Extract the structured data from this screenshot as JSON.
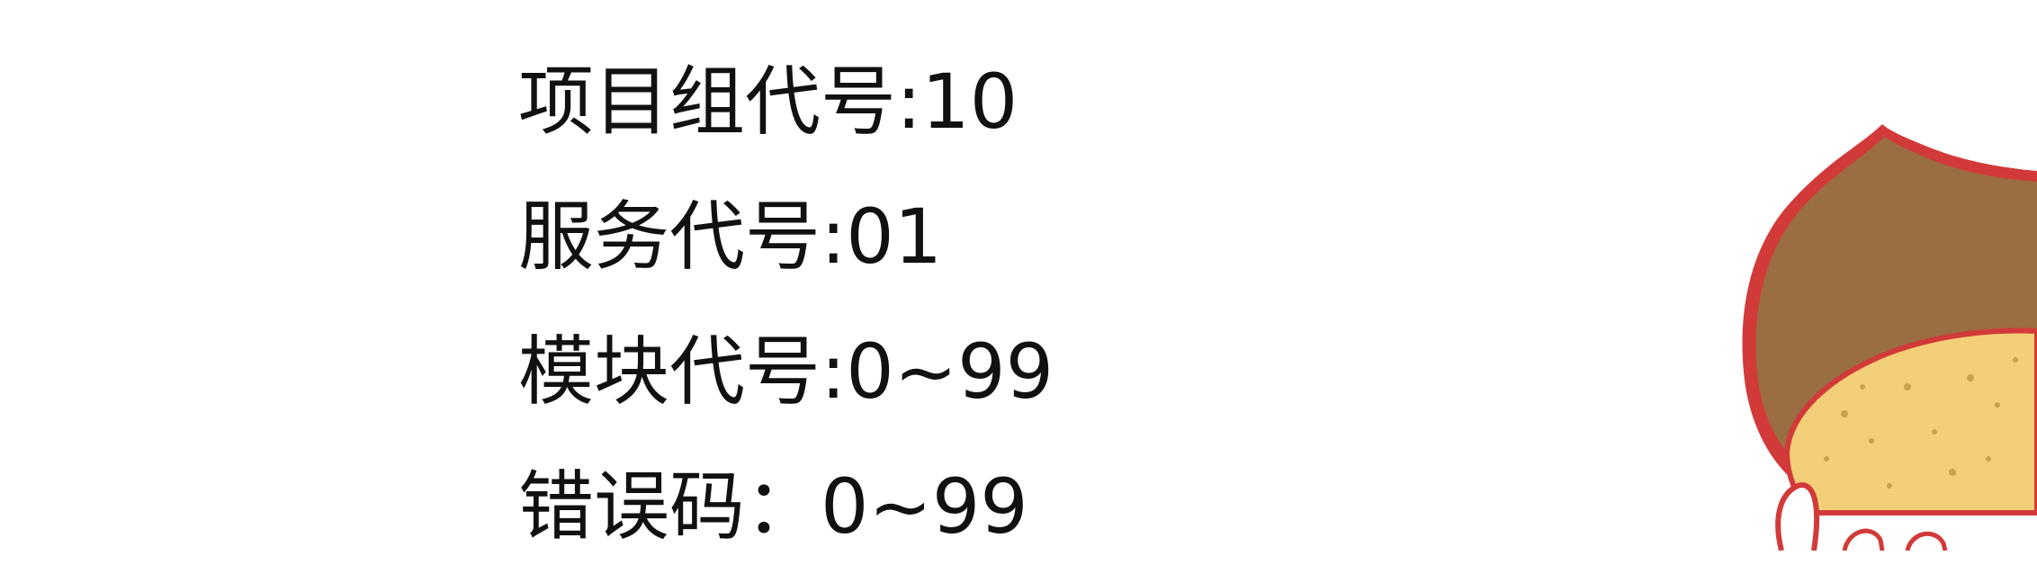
{
  "lines": [
    "项目组代号:10",
    "服务代号:01",
    "模块代号:0~99",
    "错误码：0~99"
  ],
  "mascot": {
    "icon": "chestnut-mascot-icon",
    "colors": {
      "outline": "#d23a3a",
      "shell": "#9a6d43",
      "body": "#f2cf78",
      "speckle": "#c9a24e"
    }
  }
}
